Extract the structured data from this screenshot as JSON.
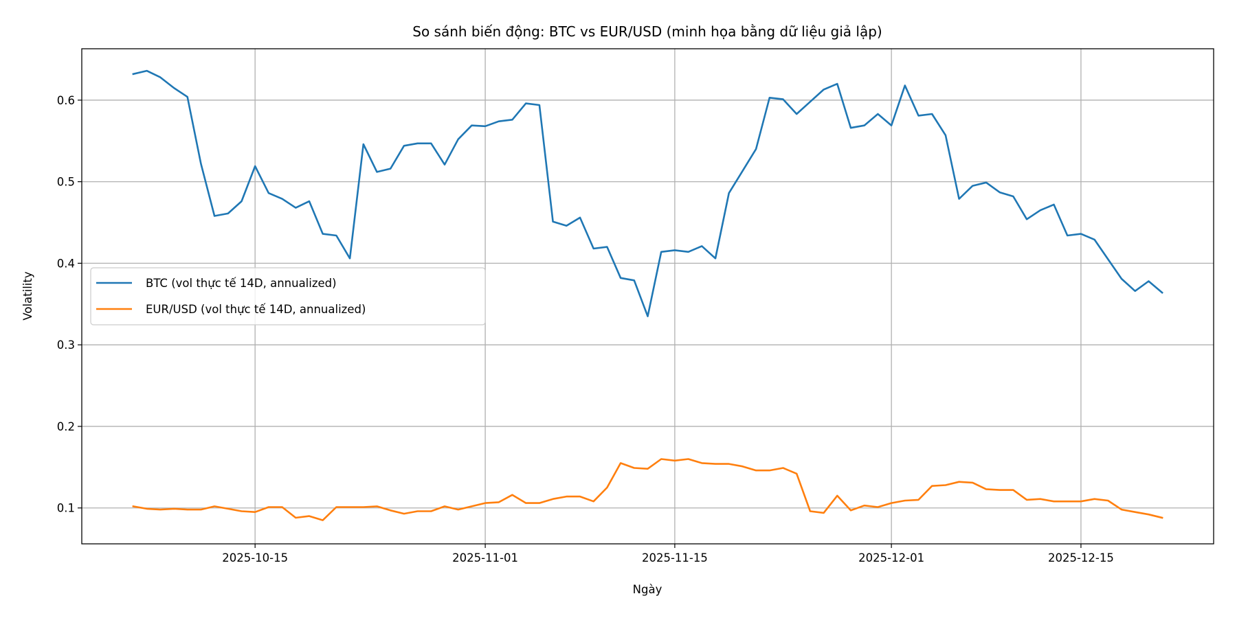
{
  "chart_data": {
    "type": "line",
    "title": "So sánh biến động: BTC vs EUR/USD (minh họa bằng dữ liệu giả lập)",
    "xlabel": "Ngày",
    "ylabel": "Volatility",
    "grid": true,
    "legend_position": "center-left",
    "ylim": [
      0.056,
      0.663
    ],
    "x_ticks": [
      "2025-10-15",
      "2025-11-01",
      "2025-11-15",
      "2025-12-01",
      "2025-12-15"
    ],
    "y_ticks": [
      "0.1",
      "0.2",
      "0.3",
      "0.4",
      "0.5",
      "0.6"
    ],
    "x": [
      "2025-10-06",
      "2025-10-07",
      "2025-10-08",
      "2025-10-09",
      "2025-10-10",
      "2025-10-11",
      "2025-10-12",
      "2025-10-13",
      "2025-10-14",
      "2025-10-15",
      "2025-10-16",
      "2025-10-17",
      "2025-10-18",
      "2025-10-19",
      "2025-10-20",
      "2025-10-21",
      "2025-10-22",
      "2025-10-23",
      "2025-10-24",
      "2025-10-25",
      "2025-10-26",
      "2025-10-27",
      "2025-10-28",
      "2025-10-29",
      "2025-10-30",
      "2025-10-31",
      "2025-11-01",
      "2025-11-02",
      "2025-11-03",
      "2025-11-04",
      "2025-11-05",
      "2025-11-06",
      "2025-11-07",
      "2025-11-08",
      "2025-11-09",
      "2025-11-10",
      "2025-11-11",
      "2025-11-12",
      "2025-11-13",
      "2025-11-14",
      "2025-11-15",
      "2025-11-16",
      "2025-11-17",
      "2025-11-18",
      "2025-11-19",
      "2025-11-20",
      "2025-11-21",
      "2025-11-22",
      "2025-11-23",
      "2025-11-24",
      "2025-11-25",
      "2025-11-26",
      "2025-11-27",
      "2025-11-28",
      "2025-11-29",
      "2025-11-30",
      "2025-12-01",
      "2025-12-02",
      "2025-12-03",
      "2025-12-04",
      "2025-12-05",
      "2025-12-06",
      "2025-12-07",
      "2025-12-08",
      "2025-12-09",
      "2025-12-10",
      "2025-12-11",
      "2025-12-12",
      "2025-12-13",
      "2025-12-14",
      "2025-12-15",
      "2025-12-16",
      "2025-12-17",
      "2025-12-18",
      "2025-12-19",
      "2025-12-20",
      "2025-12-21"
    ],
    "series": [
      {
        "name": "BTC (vol thực tế 14D, annualized)",
        "color": "#1f77b4",
        "values": [
          0.632,
          0.636,
          0.628,
          0.615,
          0.604,
          0.522,
          0.458,
          0.461,
          0.476,
          0.519,
          0.486,
          0.479,
          0.468,
          0.476,
          0.436,
          0.434,
          0.406,
          0.546,
          0.512,
          0.516,
          0.544,
          0.547,
          0.547,
          0.521,
          0.552,
          0.569,
          0.568,
          0.574,
          0.576,
          0.596,
          0.594,
          0.451,
          0.446,
          0.456,
          0.418,
          0.42,
          0.382,
          0.379,
          0.335,
          0.414,
          0.416,
          0.414,
          0.421,
          0.406,
          0.486,
          0.513,
          0.54,
          0.603,
          0.601,
          0.583,
          0.598,
          0.613,
          0.62,
          0.566,
          0.569,
          0.583,
          0.569,
          0.618,
          0.581,
          0.583,
          0.557,
          0.479,
          0.495,
          0.499,
          0.487,
          0.482,
          0.454,
          0.465,
          0.472,
          0.434,
          0.436,
          0.429,
          0.405,
          0.381,
          0.366,
          0.378,
          0.364
        ]
      },
      {
        "name": "EUR/USD (vol thực tế 14D, annualized)",
        "color": "#ff7f0e",
        "values": [
          0.102,
          0.099,
          0.098,
          0.099,
          0.098,
          0.098,
          0.102,
          0.099,
          0.096,
          0.095,
          0.101,
          0.101,
          0.088,
          0.09,
          0.085,
          0.101,
          0.101,
          0.101,
          0.102,
          0.097,
          0.093,
          0.096,
          0.096,
          0.102,
          0.098,
          0.102,
          0.106,
          0.107,
          0.116,
          0.106,
          0.106,
          0.111,
          0.114,
          0.114,
          0.108,
          0.125,
          0.155,
          0.149,
          0.148,
          0.16,
          0.158,
          0.16,
          0.155,
          0.154,
          0.154,
          0.151,
          0.146,
          0.146,
          0.149,
          0.142,
          0.096,
          0.094,
          0.115,
          0.097,
          0.103,
          0.101,
          0.106,
          0.109,
          0.11,
          0.127,
          0.128,
          0.132,
          0.131,
          0.123,
          0.122,
          0.122,
          0.11,
          0.111,
          0.108,
          0.108,
          0.108,
          0.111,
          0.109,
          0.098,
          0.095,
          0.092,
          0.088
        ]
      }
    ]
  }
}
